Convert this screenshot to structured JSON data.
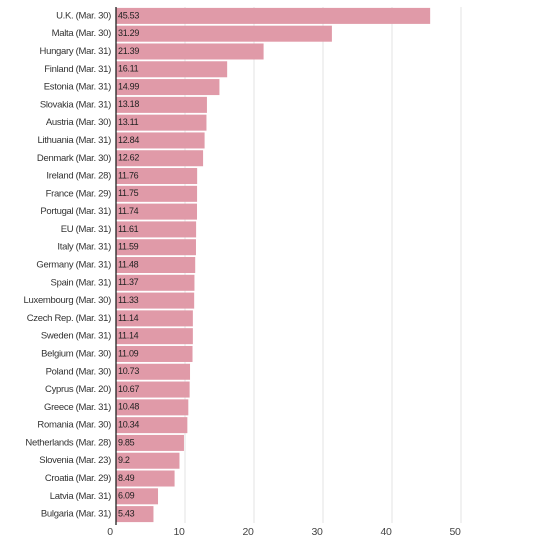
{
  "chart_data": {
    "type": "bar",
    "orientation": "horizontal",
    "categories": [
      "U.K. (Mar. 30)",
      "Malta (Mar. 30)",
      "Hungary (Mar. 31)",
      "Finland (Mar. 31)",
      "Estonia (Mar. 31)",
      "Slovakia (Mar. 31)",
      "Austria (Mar. 30)",
      "Lithuania (Mar. 31)",
      "Denmark (Mar. 30)",
      "Ireland (Mar. 28)",
      "France (Mar. 29)",
      "Portugal (Mar. 31)",
      "EU (Mar. 31)",
      "Italy (Mar. 31)",
      "Germany (Mar. 31)",
      "Spain (Mar. 31)",
      "Luxembourg (Mar. 30)",
      "Czech Rep. (Mar. 31)",
      "Sweden (Mar. 31)",
      "Belgium (Mar. 30)",
      "Poland (Mar. 30)",
      "Cyprus (Mar. 20)",
      "Greece (Mar. 31)",
      "Romania (Mar. 30)",
      "Netherlands (Mar. 28)",
      "Slovenia (Mar. 23)",
      "Croatia (Mar. 29)",
      "Latvia (Mar. 31)",
      "Bulgaria (Mar. 31)"
    ],
    "values": [
      45.53,
      31.29,
      21.39,
      16.11,
      14.99,
      13.18,
      13.11,
      12.84,
      12.62,
      11.76,
      11.75,
      11.74,
      11.61,
      11.59,
      11.48,
      11.37,
      11.33,
      11.14,
      11.14,
      11.09,
      10.73,
      10.67,
      10.48,
      10.34,
      9.85,
      9.2,
      8.49,
      6.09,
      5.43
    ],
    "color": "#e09aa8",
    "xlim": [
      0,
      50
    ],
    "xticks": [
      0,
      10,
      20,
      30,
      40,
      50
    ],
    "grid": true
  }
}
